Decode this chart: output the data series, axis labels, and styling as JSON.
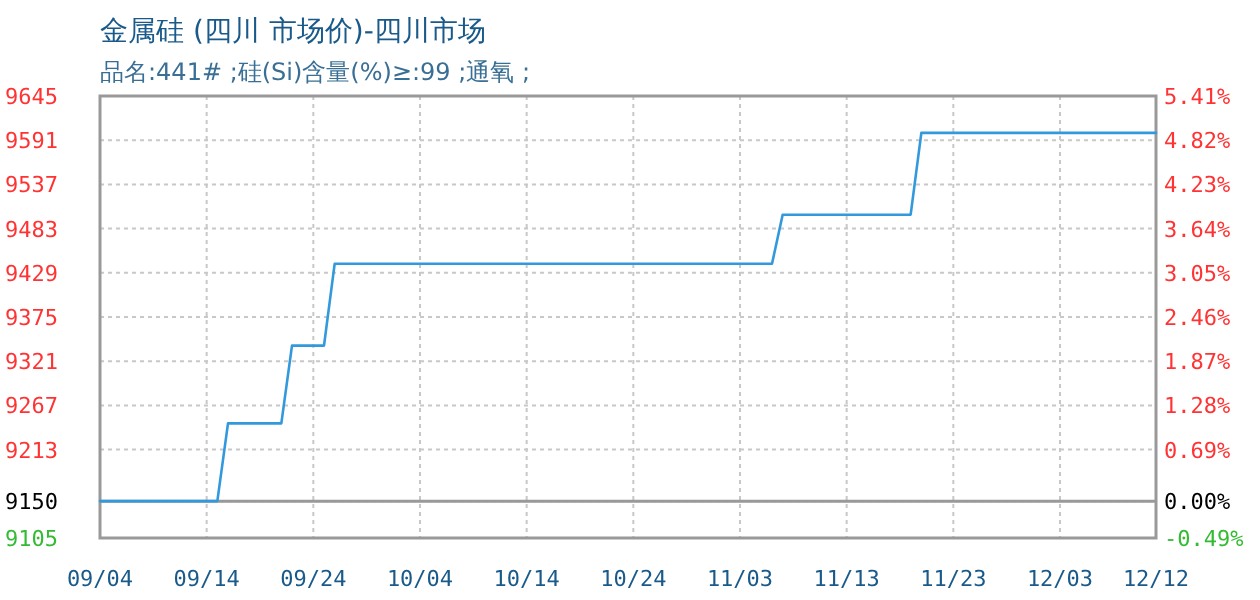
{
  "chart_data": {
    "type": "line",
    "title": "金属硅 (四川 市场价)-四川市场",
    "subtitle": "品名:441# ;硅(Si)含量(%)≥:99 ;通氧 ;",
    "x": [
      "--09-04",
      "--09-15",
      "--09-16",
      "--09-21",
      "--09-22",
      "--09-25",
      "--09-26",
      "--11-06",
      "--11-07",
      "--11-19",
      "--11-20",
      "--12-12"
    ],
    "series": [
      {
        "color": "#3399dd",
        "values": [
          9150,
          9150,
          9245,
          9245,
          9340,
          9340,
          9440,
          9440,
          9500,
          9500,
          9600,
          9600
        ]
      }
    ],
    "xlim": [
      "--09-04",
      "--12-12"
    ],
    "xticks": [
      {
        "value": "--09-04",
        "label": "09/04"
      },
      {
        "value": "--09-14",
        "label": "09/14"
      },
      {
        "value": "--09-24",
        "label": "09/24"
      },
      {
        "value": "--10-04",
        "label": "10/04"
      },
      {
        "value": "--10-14",
        "label": "10/14"
      },
      {
        "value": "--10-24",
        "label": "10/24"
      },
      {
        "value": "--11-03",
        "label": "11/03"
      },
      {
        "value": "--11-13",
        "label": "11/13"
      },
      {
        "value": "--11-23",
        "label": "11/23"
      },
      {
        "value": "--12-03",
        "label": "12/03"
      },
      {
        "value": "--12-12",
        "label": "12/12"
      }
    ],
    "ylim": [
      9105,
      9645
    ],
    "yticks": [
      9105,
      9150,
      9213,
      9267,
      9321,
      9375,
      9429,
      9483,
      9537,
      9591,
      9645
    ],
    "y2lim": [
      -0.49,
      5.41
    ],
    "y2ticks": [
      {
        "value": -0.49,
        "label": "-0.49%"
      },
      {
        "value": 0,
        "label": "0.00%"
      },
      {
        "value": 0.69,
        "label": "0.69%"
      },
      {
        "value": 1.28,
        "label": "1.28%"
      },
      {
        "value": 1.87,
        "label": "1.87%"
      },
      {
        "value": 2.46,
        "label": "2.46%"
      },
      {
        "value": 3.05,
        "label": "3.05%"
      },
      {
        "value": 3.64,
        "label": "3.64%"
      },
      {
        "value": 4.23,
        "label": "4.23%"
      },
      {
        "value": 4.82,
        "label": "4.82%"
      },
      {
        "value": 5.41,
        "label": "5.41%"
      }
    ],
    "ref_lines": [
      {
        "axis": "y",
        "value": 9150,
        "color": "#999999"
      }
    ],
    "grid": true,
    "marker": "none",
    "line_style": "solid"
  }
}
